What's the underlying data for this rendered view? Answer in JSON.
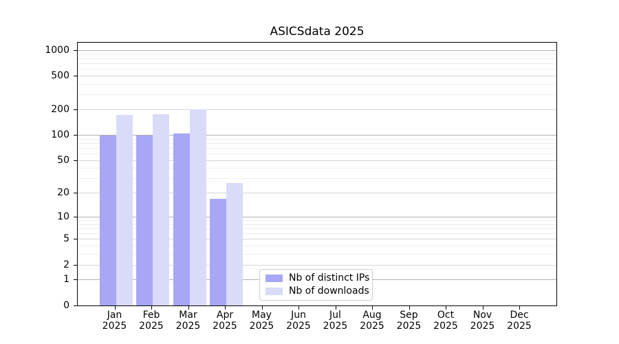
{
  "title": "ASICSdata 2025",
  "chart_data": {
    "type": "bar",
    "title": "ASICSdata 2025",
    "scale": "symlog (log10 of 1+value)",
    "grid": "both",
    "categories": [
      "Jan",
      "Feb",
      "Mar",
      "Apr",
      "May",
      "Jun",
      "Jul",
      "Aug",
      "Sep",
      "Oct",
      "Nov",
      "Dec"
    ],
    "x_year_line": "2025",
    "series": [
      {
        "name": "Nb of distinct IPs",
        "color": "#a7a7f5",
        "values": [
          100,
          100,
          105,
          17,
          0,
          0,
          0,
          0,
          0,
          0,
          0,
          0
        ]
      },
      {
        "name": "Nb of downloads",
        "color": "#dadaf9",
        "values": [
          175,
          180,
          205,
          27,
          0,
          0,
          0,
          0,
          0,
          0,
          0,
          0
        ]
      }
    ],
    "y_ticks": [
      0,
      1,
      2,
      5,
      10,
      20,
      50,
      100,
      200,
      500,
      1000
    ],
    "y_minor_ticks": [
      3,
      4,
      6,
      7,
      8,
      9,
      30,
      40,
      60,
      70,
      80,
      90,
      300,
      400,
      600,
      700,
      800,
      900
    ],
    "ylim": [
      0,
      1250
    ],
    "xlabel": "",
    "ylabel": "",
    "legend_position": "lower center",
    "background_color": "#ffffff",
    "frame_color": "#000000"
  }
}
